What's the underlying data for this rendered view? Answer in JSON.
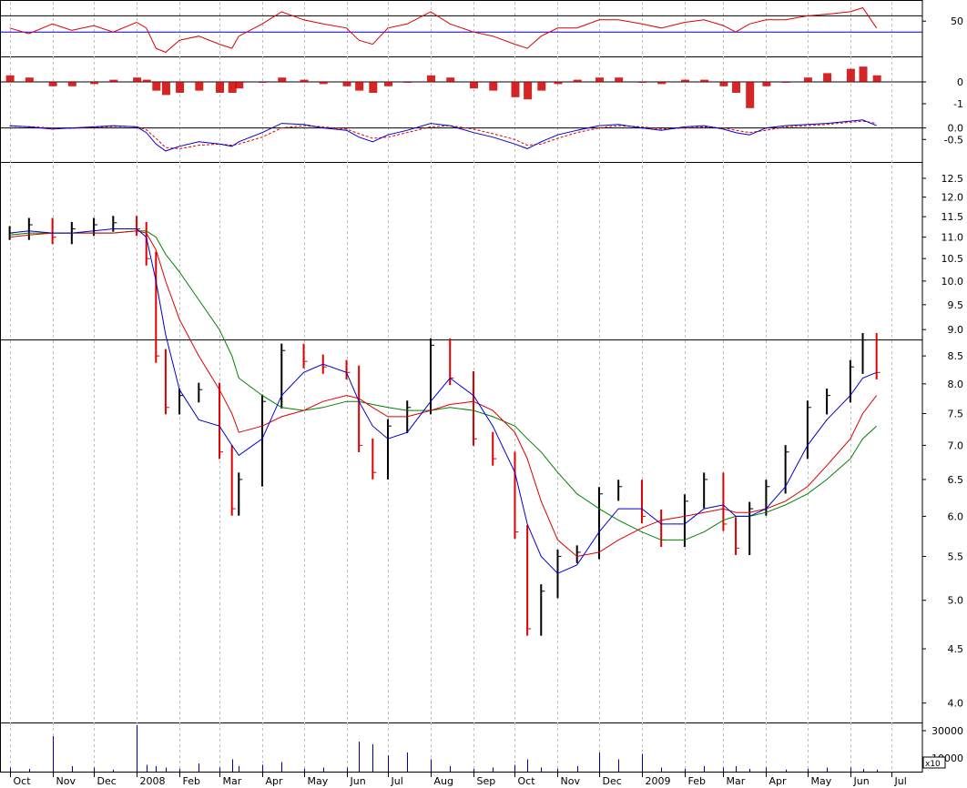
{
  "chart_data": {
    "type": "line",
    "x_labels": [
      "Oct",
      "Nov",
      "Dec",
      "2008",
      "Feb",
      "Mar",
      "Apr",
      "May",
      "Jun",
      "Jul",
      "Aug",
      "Sep",
      "Oct",
      "Nov",
      "Dec",
      "2009",
      "Feb",
      "Mar",
      "Apr",
      "May",
      "Jun",
      "Jul"
    ],
    "price_axis": {
      "scale": "log",
      "ticks": [
        "4.0",
        "4.5",
        "5.0",
        "5.5",
        "6.0",
        "6.5",
        "7.0",
        "7.5",
        "8.0",
        "8.5",
        "9.0",
        "9.5",
        "10.0",
        "10.5",
        "11.0",
        "11.5",
        "12.0",
        "12.5"
      ],
      "reference_line": 8.8,
      "range": [
        3.85,
        12.9
      ]
    },
    "price_series": {
      "x": [
        "2007-10-01",
        "2007-10-15",
        "2007-11-01",
        "2007-11-15",
        "2007-12-01",
        "2007-12-15",
        "2008-01-01",
        "2008-01-08",
        "2008-01-15",
        "2008-01-22",
        "2008-02-01",
        "2008-02-15",
        "2008-03-01",
        "2008-03-10",
        "2008-03-15",
        "2008-04-01",
        "2008-04-15",
        "2008-05-01",
        "2008-05-15",
        "2008-06-01",
        "2008-06-10",
        "2008-06-20",
        "2008-07-01",
        "2008-07-15",
        "2008-08-01",
        "2008-08-15",
        "2008-09-01",
        "2008-09-15",
        "2008-10-01",
        "2008-10-10",
        "2008-10-20",
        "2008-11-01",
        "2008-11-15",
        "2008-12-01",
        "2008-12-15",
        "2009-01-01",
        "2009-01-15",
        "2009-02-01",
        "2009-02-15",
        "2009-03-01",
        "2009-03-10",
        "2009-03-20",
        "2009-04-01",
        "2009-04-15",
        "2009-05-01",
        "2009-05-15",
        "2009-06-01",
        "2009-06-10",
        "2009-06-20"
      ],
      "close": [
        11.1,
        11.3,
        11.0,
        11.2,
        11.3,
        11.35,
        11.2,
        10.5,
        8.5,
        7.6,
        7.8,
        7.9,
        6.9,
        6.1,
        6.5,
        7.7,
        8.6,
        8.4,
        8.3,
        8.2,
        7.0,
        6.6,
        7.3,
        7.6,
        8.7,
        8.1,
        7.1,
        6.8,
        5.8,
        4.7,
        5.1,
        5.5,
        5.55,
        6.3,
        6.4,
        6.0,
        5.7,
        6.2,
        6.5,
        5.9,
        5.6,
        6.1,
        6.4,
        6.9,
        7.6,
        7.8,
        8.3,
        8.8,
        8.2
      ]
    },
    "ma_blue": [
      11.1,
      11.15,
      11.1,
      11.1,
      11.15,
      11.2,
      11.2,
      11.0,
      10.0,
      8.9,
      7.9,
      7.4,
      7.3,
      7.0,
      6.85,
      7.1,
      7.8,
      8.2,
      8.35,
      8.2,
      7.7,
      7.3,
      7.1,
      7.2,
      7.7,
      8.1,
      7.8,
      7.3,
      6.6,
      5.9,
      5.5,
      5.3,
      5.4,
      5.8,
      6.1,
      6.1,
      5.9,
      5.9,
      6.1,
      6.15,
      6.0,
      6.0,
      6.1,
      6.4,
      7.0,
      7.4,
      7.8,
      8.1,
      8.2
    ],
    "ma_red": [
      11.0,
      11.05,
      11.1,
      11.1,
      11.1,
      11.1,
      11.15,
      11.1,
      10.7,
      10.0,
      9.2,
      8.5,
      7.9,
      7.5,
      7.2,
      7.3,
      7.45,
      7.55,
      7.7,
      7.8,
      7.75,
      7.6,
      7.45,
      7.45,
      7.55,
      7.65,
      7.7,
      7.55,
      7.2,
      6.8,
      6.2,
      5.7,
      5.5,
      5.55,
      5.7,
      5.85,
      5.95,
      6.0,
      6.05,
      6.1,
      6.05,
      6.05,
      6.1,
      6.2,
      6.4,
      6.7,
      7.1,
      7.5,
      7.8
    ],
    "ma_green": [
      11.05,
      11.1,
      11.1,
      11.1,
      11.1,
      11.1,
      11.15,
      11.15,
      11.0,
      10.6,
      10.2,
      9.6,
      9.0,
      8.5,
      8.1,
      7.8,
      7.6,
      7.55,
      7.6,
      7.7,
      7.7,
      7.65,
      7.6,
      7.55,
      7.55,
      7.6,
      7.55,
      7.45,
      7.3,
      7.1,
      6.9,
      6.6,
      6.3,
      6.1,
      5.95,
      5.8,
      5.7,
      5.7,
      5.8,
      5.95,
      6.0,
      6.0,
      6.05,
      6.15,
      6.3,
      6.5,
      6.8,
      7.1,
      7.3
    ],
    "rsi_panel": {
      "tick": "50",
      "upper_line": 70,
      "lower_line": 50,
      "range": [
        20,
        85
      ],
      "values": [
        55,
        48,
        60,
        52,
        58,
        50,
        62,
        55,
        30,
        25,
        40,
        45,
        35,
        30,
        45,
        60,
        75,
        65,
        60,
        55,
        40,
        35,
        55,
        60,
        75,
        60,
        50,
        45,
        35,
        30,
        45,
        55,
        55,
        65,
        65,
        60,
        55,
        62,
        65,
        58,
        50,
        60,
        65,
        65,
        70,
        72,
        75,
        80,
        55
      ]
    },
    "histogram_panel": {
      "ticks": [
        "0",
        "-1"
      ],
      "range": [
        -1.5,
        1.0
      ],
      "values": [
        0.3,
        0.2,
        -0.2,
        -0.2,
        -0.1,
        0.1,
        0.2,
        0.1,
        -0.4,
        -0.6,
        -0.5,
        -0.4,
        -0.5,
        -0.5,
        -0.3,
        0.0,
        0.2,
        0.1,
        -0.1,
        -0.2,
        -0.4,
        -0.5,
        -0.2,
        0.0,
        0.3,
        0.2,
        -0.3,
        -0.4,
        -0.7,
        -0.8,
        -0.4,
        -0.1,
        0.1,
        0.2,
        0.2,
        0.0,
        -0.1,
        0.1,
        0.1,
        -0.2,
        -0.5,
        -1.2,
        -0.2,
        0.0,
        0.2,
        0.4,
        0.6,
        0.7,
        0.3
      ]
    },
    "macd_panel": {
      "ticks": [
        "0.0",
        "-0.5"
      ],
      "range": [
        -1.4,
        0.5
      ],
      "line": [
        0.1,
        0.05,
        -0.05,
        0.0,
        0.05,
        0.1,
        0.05,
        -0.2,
        -0.7,
        -1.0,
        -0.8,
        -0.6,
        -0.7,
        -0.8,
        -0.6,
        -0.2,
        0.2,
        0.15,
        0.0,
        -0.1,
        -0.4,
        -0.6,
        -0.3,
        -0.1,
        0.2,
        0.1,
        -0.2,
        -0.4,
        -0.7,
        -0.9,
        -0.6,
        -0.3,
        -0.1,
        0.1,
        0.15,
        0.0,
        -0.1,
        0.05,
        0.1,
        -0.05,
        -0.2,
        -0.3,
        0.0,
        0.1,
        0.15,
        0.2,
        0.3,
        0.35,
        0.1
      ],
      "signal": [
        0.08,
        0.06,
        0.0,
        -0.02,
        0.03,
        0.07,
        0.06,
        -0.08,
        -0.45,
        -0.85,
        -0.9,
        -0.75,
        -0.7,
        -0.75,
        -0.7,
        -0.4,
        0.0,
        0.1,
        0.05,
        -0.05,
        -0.25,
        -0.45,
        -0.4,
        -0.2,
        0.05,
        0.1,
        -0.05,
        -0.25,
        -0.5,
        -0.75,
        -0.7,
        -0.45,
        -0.2,
        0.0,
        0.1,
        0.05,
        -0.05,
        0.0,
        0.05,
        0.0,
        -0.1,
        -0.2,
        -0.1,
        0.05,
        0.1,
        0.15,
        0.25,
        0.3,
        0.2
      ]
    },
    "volume_panel": {
      "ticks": [
        "30000",
        "10000"
      ],
      "unit_label": "x10",
      "range": [
        0,
        36000
      ],
      "values": [
        3000,
        2000,
        26000,
        4000,
        3000,
        1500,
        34000,
        5000,
        4000,
        3000,
        2000,
        6000,
        3000,
        9000,
        4000,
        5000,
        7000,
        2000,
        3000,
        3000,
        22000,
        20000,
        12000,
        14000,
        9000,
        4000,
        2000,
        3000,
        5000,
        9000,
        3000,
        2000,
        4000,
        14000,
        9000,
        13000,
        3000,
        2000,
        4000,
        3000,
        4000,
        2000,
        3000,
        1500,
        2000,
        3000,
        3000,
        2000,
        1500
      ]
    },
    "colors": {
      "price_up": "#000000",
      "price_down": "#e00000",
      "ma_blue": "#0000cc",
      "ma_red": "#dd0000",
      "ma_green": "#008000",
      "grid": "#bfbfbf"
    }
  }
}
